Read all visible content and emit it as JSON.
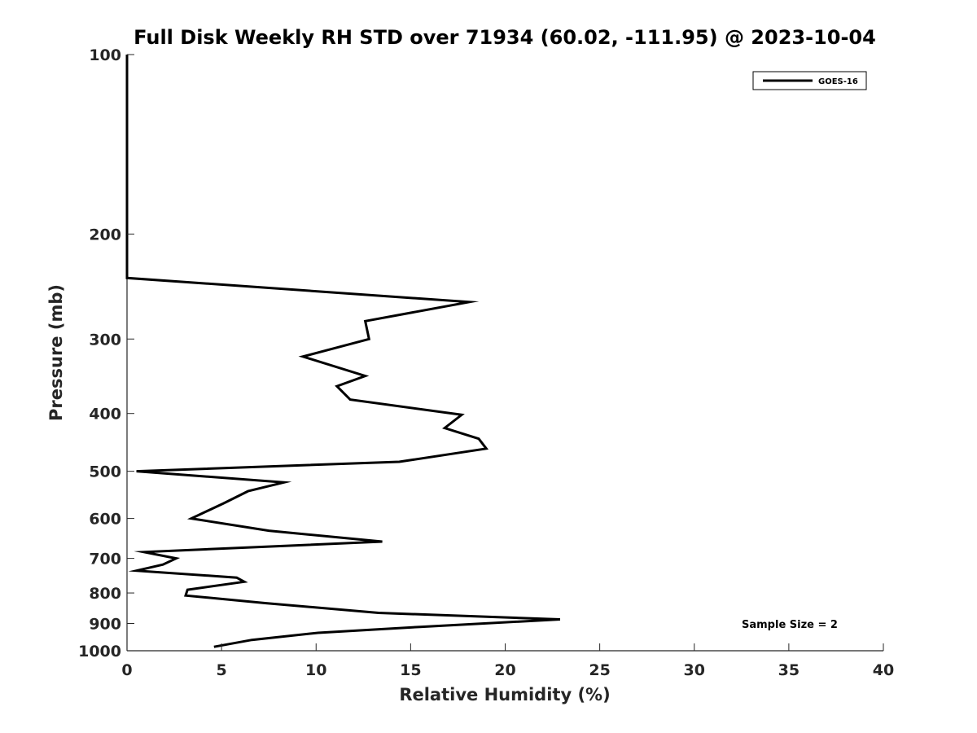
{
  "chart_data": {
    "type": "line",
    "title": "Full Disk Weekly RH STD over 71934 (60.02, -111.95) @ 2023-10-04",
    "xlabel": "Relative Humidity (%)",
    "ylabel": "Pressure (mb)",
    "xlim": [
      0,
      40
    ],
    "ylim": [
      1000,
      100
    ],
    "yscale": "log",
    "y_reversed": true,
    "x_ticks": [
      "0",
      "5",
      "10",
      "15",
      "20",
      "25",
      "30",
      "35",
      "40"
    ],
    "y_ticks": [
      "100",
      "200",
      "300",
      "400",
      "500",
      "600",
      "700",
      "800",
      "900",
      "1000"
    ],
    "grid": false,
    "legend": {
      "position": "top-right",
      "entries": [
        "GOES-16"
      ]
    },
    "annotation": "Sample Size = 2",
    "series": [
      {
        "name": "GOES-16",
        "color": "#000000",
        "x": [
          0,
          0,
          0,
          18.1,
          12.6,
          12.8,
          9.3,
          12.6,
          11.1,
          11.8,
          17.7,
          16.8,
          18.6,
          19.0,
          14.4,
          0.5,
          8.3,
          6.4,
          5.1,
          3.4,
          7.5,
          13.5,
          0.9,
          2.6,
          1.9,
          0.5,
          5.8,
          6.2,
          3.2,
          3.1,
          7.3,
          13.3,
          22.9,
          15.5,
          10.1,
          6.6,
          4.6
        ],
        "y": [
          100,
          200,
          237,
          260,
          280,
          300,
          321,
          346,
          360,
          379,
          402,
          423,
          441,
          458,
          482,
          500,
          522,
          540,
          566,
          600,
          629,
          656,
          683,
          700,
          717,
          734,
          754,
          766,
          790,
          808,
          832,
          864,
          886,
          912,
          933,
          959,
          985
        ]
      }
    ]
  }
}
